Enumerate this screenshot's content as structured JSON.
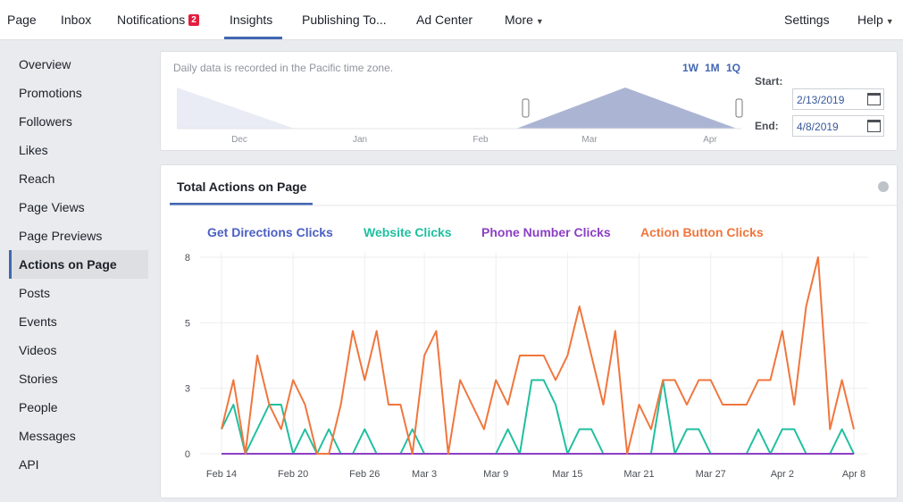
{
  "nav": {
    "left": [
      "Page",
      "Inbox",
      "Notifications",
      "Insights",
      "Publishing To...",
      "Ad Center",
      "More"
    ],
    "badge": "2",
    "right": [
      "Settings",
      "Help"
    ],
    "selected": 3
  },
  "sidebar": {
    "items": [
      "Overview",
      "Promotions",
      "Followers",
      "Likes",
      "Reach",
      "Page Views",
      "Page Previews",
      "Actions on Page",
      "Posts",
      "Events",
      "Videos",
      "Stories",
      "People",
      "Messages",
      "API"
    ],
    "selected": 7
  },
  "range": {
    "note": "Daily data is recorded in the Pacific time zone.",
    "buttons": [
      "1W",
      "1M",
      "1Q"
    ],
    "months": [
      "Dec",
      "Jan",
      "Feb",
      "Mar",
      "Apr"
    ],
    "start_label": "Start:",
    "start": "2/13/2019",
    "end_label": "End:",
    "end": "4/8/2019"
  },
  "tab": "Total Actions on Page",
  "chart_data": {
    "type": "line",
    "categories": [
      "Feb 14",
      null,
      null,
      null,
      null,
      null,
      "Feb 20",
      null,
      null,
      null,
      null,
      null,
      "Feb 26",
      null,
      null,
      null,
      null,
      "Mar 3",
      null,
      null,
      null,
      null,
      null,
      "Mar 9",
      null,
      null,
      null,
      null,
      null,
      "Mar 15",
      null,
      null,
      null,
      null,
      null,
      "Mar 21",
      null,
      null,
      null,
      null,
      null,
      "Mar 27",
      null,
      null,
      null,
      null,
      null,
      "Apr 2",
      null,
      null,
      null,
      null,
      null,
      "Apr 8"
    ],
    "series": [
      {
        "name": "Get Directions Clicks",
        "color": "#4b5fc3",
        "values": [
          0,
          0,
          0,
          0,
          0,
          0,
          0,
          0,
          0,
          0,
          0,
          0,
          0,
          0,
          0,
          0,
          0,
          0,
          0,
          0,
          0,
          0,
          0,
          0,
          0,
          0,
          0,
          0,
          0,
          0,
          0,
          0,
          0,
          0,
          0,
          0,
          0,
          0,
          0,
          0,
          0,
          0,
          0,
          0,
          0,
          0,
          0,
          0,
          0,
          0,
          0,
          0,
          0,
          0
        ]
      },
      {
        "name": "Website Clicks",
        "color": "#1fbf9f",
        "values": [
          1,
          2,
          0,
          1,
          2,
          2,
          0,
          1,
          0,
          1,
          0,
          0,
          1,
          0,
          0,
          0,
          1,
          0,
          0,
          0,
          0,
          0,
          0,
          0,
          1,
          0,
          3,
          3,
          2,
          0,
          1,
          1,
          0,
          0,
          0,
          0,
          0,
          3,
          0,
          1,
          1,
          0,
          0,
          0,
          0,
          1,
          0,
          1,
          1,
          0,
          0,
          0,
          1,
          0
        ]
      },
      {
        "name": "Phone Number Clicks",
        "color": "#8c3fc4",
        "values": [
          0,
          0,
          0,
          0,
          0,
          0,
          0,
          0,
          0,
          0,
          0,
          0,
          0,
          0,
          0,
          0,
          0,
          0,
          0,
          0,
          0,
          0,
          0,
          0,
          0,
          0,
          0,
          0,
          0,
          0,
          0,
          0,
          0,
          0,
          0,
          0,
          0,
          0,
          0,
          0,
          0,
          0,
          0,
          0,
          0,
          0,
          0,
          0,
          0,
          0,
          0,
          0,
          0,
          0
        ]
      },
      {
        "name": "Action Button Clicks",
        "color": "#f0763d",
        "values": [
          1,
          3,
          0,
          4,
          2,
          1,
          3,
          2,
          0,
          0,
          2,
          5,
          3,
          5,
          2,
          2,
          0,
          4,
          5,
          0,
          3,
          2,
          1,
          3,
          2,
          4,
          4,
          4,
          3,
          4,
          6,
          4,
          2,
          5,
          0,
          2,
          1,
          3,
          3,
          2,
          3,
          3,
          2,
          2,
          2,
          3,
          3,
          5,
          2,
          6,
          8,
          1,
          3,
          1
        ]
      }
    ],
    "ylim": [
      0,
      8
    ],
    "yticks": [
      0,
      {
        "value": 2.67,
        "label": "3"
      },
      {
        "value": 5.33,
        "label": "5"
      },
      8
    ],
    "grid": true
  }
}
